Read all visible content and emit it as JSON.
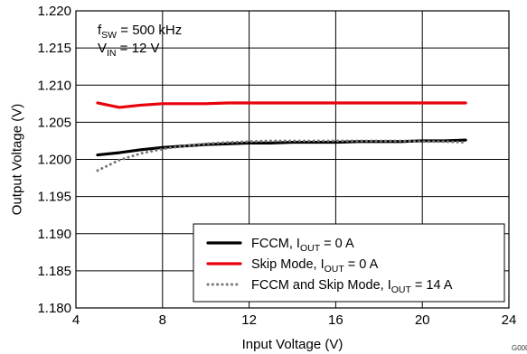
{
  "chart_data": {
    "type": "line",
    "xlabel": "Input Voltage (V)",
    "ylabel": "Output Voltage (V)",
    "xlim": [
      4,
      24
    ],
    "ylim": [
      1.18,
      1.22
    ],
    "x_ticks": [
      "4",
      "8",
      "12",
      "16",
      "20",
      "24"
    ],
    "x_tick_values": [
      4,
      8,
      12,
      16,
      20,
      24
    ],
    "y_ticks": [
      "1.180",
      "1.185",
      "1.190",
      "1.195",
      "1.200",
      "1.205",
      "1.210",
      "1.215",
      "1.220"
    ],
    "y_tick_values": [
      1.18,
      1.185,
      1.19,
      1.195,
      1.2,
      1.205,
      1.21,
      1.215,
      1.22
    ],
    "grid": true,
    "legend_position": "bottom-right",
    "annotation": {
      "line1": {
        "base": "f",
        "sub": "SW",
        "rest": " = 500 kHz"
      },
      "line2": {
        "base": "V",
        "sub": "IN",
        "rest": " = 12 V"
      }
    },
    "figure_id": "G000",
    "series": [
      {
        "name": "FCCM, IOUT = 0 A",
        "legend_parts": {
          "base": "FCCM, I",
          "sub": "OUT",
          "rest": " = 0 A"
        },
        "color": "#000000",
        "style": "solid",
        "x": [
          5,
          6,
          7,
          8,
          9,
          10,
          11,
          12,
          13,
          14,
          15,
          16,
          17,
          18,
          19,
          20,
          21,
          22
        ],
        "y": [
          1.2006,
          1.2009,
          1.2013,
          1.2016,
          1.2018,
          1.202,
          1.2021,
          1.2022,
          1.2022,
          1.2023,
          1.2023,
          1.2023,
          1.2024,
          1.2024,
          1.2024,
          1.2025,
          1.2025,
          1.2026
        ]
      },
      {
        "name": "Skip Mode, IOUT = 0 A",
        "legend_parts": {
          "base": "Skip Mode, I",
          "sub": "OUT",
          "rest": " = 0 A"
        },
        "color": "#e8000b",
        "style": "solid",
        "x": [
          5,
          6,
          7,
          8,
          9,
          10,
          11,
          12,
          13,
          14,
          15,
          16,
          17,
          18,
          19,
          20,
          21,
          22
        ],
        "y": [
          1.2076,
          1.207,
          1.2073,
          1.2075,
          1.2075,
          1.2075,
          1.2076,
          1.2076,
          1.2076,
          1.2076,
          1.2076,
          1.2076,
          1.2076,
          1.2076,
          1.2076,
          1.2076,
          1.2076,
          1.2076
        ]
      },
      {
        "name": "FCCM and Skip Mode, IOUT = 14 A",
        "legend_parts": {
          "base": "FCCM and Skip Mode, I",
          "sub": "OUT",
          "rest": " = 14 A"
        },
        "color": "#777777",
        "style": "dotted",
        "x": [
          5,
          6,
          7,
          8,
          9,
          10,
          11,
          12,
          13,
          14,
          15,
          16,
          17,
          18,
          19,
          20,
          21,
          22
        ],
        "y": [
          1.1985,
          1.1999,
          1.2008,
          1.2014,
          1.2018,
          1.2021,
          1.2023,
          1.2024,
          1.2025,
          1.2025,
          1.2025,
          1.2025,
          1.2025,
          1.2025,
          1.2025,
          1.2024,
          1.2024,
          1.2023
        ]
      }
    ]
  }
}
